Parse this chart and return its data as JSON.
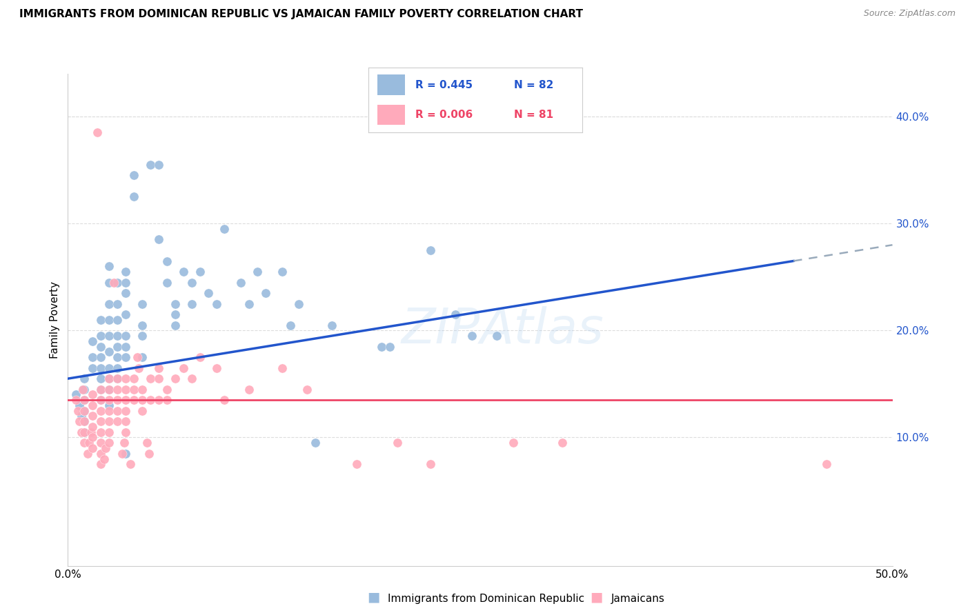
{
  "title": "IMMIGRANTS FROM DOMINICAN REPUBLIC VS JAMAICAN FAMILY POVERTY CORRELATION CHART",
  "source": "Source: ZipAtlas.com",
  "ylabel": "Family Poverty",
  "legend_label_1": "Immigrants from Dominican Republic",
  "legend_label_2": "Jamaicans",
  "xlim": [
    0.0,
    0.5
  ],
  "ylim": [
    -0.02,
    0.44
  ],
  "color_blue": "#99BBDD",
  "color_pink": "#FFAABB",
  "color_blue_line": "#2255CC",
  "color_pink_line": "#EE4466",
  "color_dashed": "#99AABB",
  "blue_line_x0": 0.0,
  "blue_line_y0": 0.155,
  "blue_line_x1": 0.44,
  "blue_line_y1": 0.265,
  "pink_line_y": 0.135,
  "blue_scatter": [
    [
      0.005,
      0.14
    ],
    [
      0.007,
      0.13
    ],
    [
      0.008,
      0.12
    ],
    [
      0.009,
      0.145
    ],
    [
      0.01,
      0.155
    ],
    [
      0.01,
      0.145
    ],
    [
      0.01,
      0.135
    ],
    [
      0.01,
      0.125
    ],
    [
      0.01,
      0.115
    ],
    [
      0.01,
      0.105
    ],
    [
      0.015,
      0.19
    ],
    [
      0.015,
      0.175
    ],
    [
      0.015,
      0.165
    ],
    [
      0.02,
      0.21
    ],
    [
      0.02,
      0.195
    ],
    [
      0.02,
      0.185
    ],
    [
      0.02,
      0.175
    ],
    [
      0.02,
      0.165
    ],
    [
      0.02,
      0.155
    ],
    [
      0.02,
      0.145
    ],
    [
      0.02,
      0.135
    ],
    [
      0.025,
      0.26
    ],
    [
      0.025,
      0.245
    ],
    [
      0.025,
      0.225
    ],
    [
      0.025,
      0.21
    ],
    [
      0.025,
      0.195
    ],
    [
      0.025,
      0.18
    ],
    [
      0.025,
      0.165
    ],
    [
      0.025,
      0.155
    ],
    [
      0.025,
      0.145
    ],
    [
      0.025,
      0.13
    ],
    [
      0.03,
      0.245
    ],
    [
      0.03,
      0.225
    ],
    [
      0.03,
      0.21
    ],
    [
      0.03,
      0.195
    ],
    [
      0.03,
      0.185
    ],
    [
      0.03,
      0.175
    ],
    [
      0.03,
      0.165
    ],
    [
      0.03,
      0.155
    ],
    [
      0.035,
      0.255
    ],
    [
      0.035,
      0.245
    ],
    [
      0.035,
      0.235
    ],
    [
      0.035,
      0.215
    ],
    [
      0.035,
      0.195
    ],
    [
      0.035,
      0.185
    ],
    [
      0.035,
      0.175
    ],
    [
      0.035,
      0.085
    ],
    [
      0.04,
      0.345
    ],
    [
      0.04,
      0.325
    ],
    [
      0.045,
      0.225
    ],
    [
      0.045,
      0.205
    ],
    [
      0.045,
      0.195
    ],
    [
      0.045,
      0.175
    ],
    [
      0.05,
      0.355
    ],
    [
      0.055,
      0.355
    ],
    [
      0.055,
      0.285
    ],
    [
      0.06,
      0.265
    ],
    [
      0.06,
      0.245
    ],
    [
      0.065,
      0.225
    ],
    [
      0.065,
      0.215
    ],
    [
      0.065,
      0.205
    ],
    [
      0.07,
      0.255
    ],
    [
      0.075,
      0.245
    ],
    [
      0.075,
      0.225
    ],
    [
      0.08,
      0.255
    ],
    [
      0.085,
      0.235
    ],
    [
      0.09,
      0.225
    ],
    [
      0.095,
      0.295
    ],
    [
      0.105,
      0.245
    ],
    [
      0.11,
      0.225
    ],
    [
      0.115,
      0.255
    ],
    [
      0.12,
      0.235
    ],
    [
      0.13,
      0.255
    ],
    [
      0.135,
      0.205
    ],
    [
      0.14,
      0.225
    ],
    [
      0.15,
      0.095
    ],
    [
      0.16,
      0.205
    ],
    [
      0.19,
      0.185
    ],
    [
      0.195,
      0.185
    ],
    [
      0.22,
      0.275
    ],
    [
      0.235,
      0.215
    ],
    [
      0.245,
      0.195
    ],
    [
      0.26,
      0.195
    ]
  ],
  "pink_scatter": [
    [
      0.005,
      0.135
    ],
    [
      0.006,
      0.125
    ],
    [
      0.007,
      0.115
    ],
    [
      0.008,
      0.105
    ],
    [
      0.009,
      0.145
    ],
    [
      0.01,
      0.135
    ],
    [
      0.01,
      0.125
    ],
    [
      0.01,
      0.115
    ],
    [
      0.01,
      0.105
    ],
    [
      0.01,
      0.095
    ],
    [
      0.012,
      0.085
    ],
    [
      0.013,
      0.095
    ],
    [
      0.014,
      0.105
    ],
    [
      0.015,
      0.14
    ],
    [
      0.015,
      0.13
    ],
    [
      0.015,
      0.12
    ],
    [
      0.015,
      0.11
    ],
    [
      0.015,
      0.1
    ],
    [
      0.015,
      0.09
    ],
    [
      0.018,
      0.385
    ],
    [
      0.02,
      0.145
    ],
    [
      0.02,
      0.135
    ],
    [
      0.02,
      0.125
    ],
    [
      0.02,
      0.115
    ],
    [
      0.02,
      0.105
    ],
    [
      0.02,
      0.095
    ],
    [
      0.02,
      0.085
    ],
    [
      0.02,
      0.075
    ],
    [
      0.022,
      0.08
    ],
    [
      0.023,
      0.09
    ],
    [
      0.025,
      0.155
    ],
    [
      0.025,
      0.145
    ],
    [
      0.025,
      0.135
    ],
    [
      0.025,
      0.125
    ],
    [
      0.025,
      0.115
    ],
    [
      0.025,
      0.105
    ],
    [
      0.025,
      0.095
    ],
    [
      0.028,
      0.245
    ],
    [
      0.03,
      0.155
    ],
    [
      0.03,
      0.145
    ],
    [
      0.03,
      0.135
    ],
    [
      0.03,
      0.125
    ],
    [
      0.03,
      0.115
    ],
    [
      0.033,
      0.085
    ],
    [
      0.034,
      0.095
    ],
    [
      0.035,
      0.155
    ],
    [
      0.035,
      0.145
    ],
    [
      0.035,
      0.135
    ],
    [
      0.035,
      0.125
    ],
    [
      0.035,
      0.115
    ],
    [
      0.035,
      0.105
    ],
    [
      0.038,
      0.075
    ],
    [
      0.04,
      0.155
    ],
    [
      0.04,
      0.145
    ],
    [
      0.04,
      0.135
    ],
    [
      0.042,
      0.175
    ],
    [
      0.043,
      0.165
    ],
    [
      0.045,
      0.145
    ],
    [
      0.045,
      0.135
    ],
    [
      0.045,
      0.125
    ],
    [
      0.048,
      0.095
    ],
    [
      0.049,
      0.085
    ],
    [
      0.05,
      0.155
    ],
    [
      0.05,
      0.135
    ],
    [
      0.055,
      0.165
    ],
    [
      0.055,
      0.155
    ],
    [
      0.055,
      0.135
    ],
    [
      0.06,
      0.145
    ],
    [
      0.06,
      0.135
    ],
    [
      0.065,
      0.155
    ],
    [
      0.07,
      0.165
    ],
    [
      0.075,
      0.155
    ],
    [
      0.08,
      0.175
    ],
    [
      0.09,
      0.165
    ],
    [
      0.095,
      0.135
    ],
    [
      0.11,
      0.145
    ],
    [
      0.13,
      0.165
    ],
    [
      0.145,
      0.145
    ],
    [
      0.175,
      0.075
    ],
    [
      0.2,
      0.095
    ],
    [
      0.22,
      0.075
    ],
    [
      0.27,
      0.095
    ],
    [
      0.3,
      0.095
    ],
    [
      0.46,
      0.075
    ]
  ]
}
